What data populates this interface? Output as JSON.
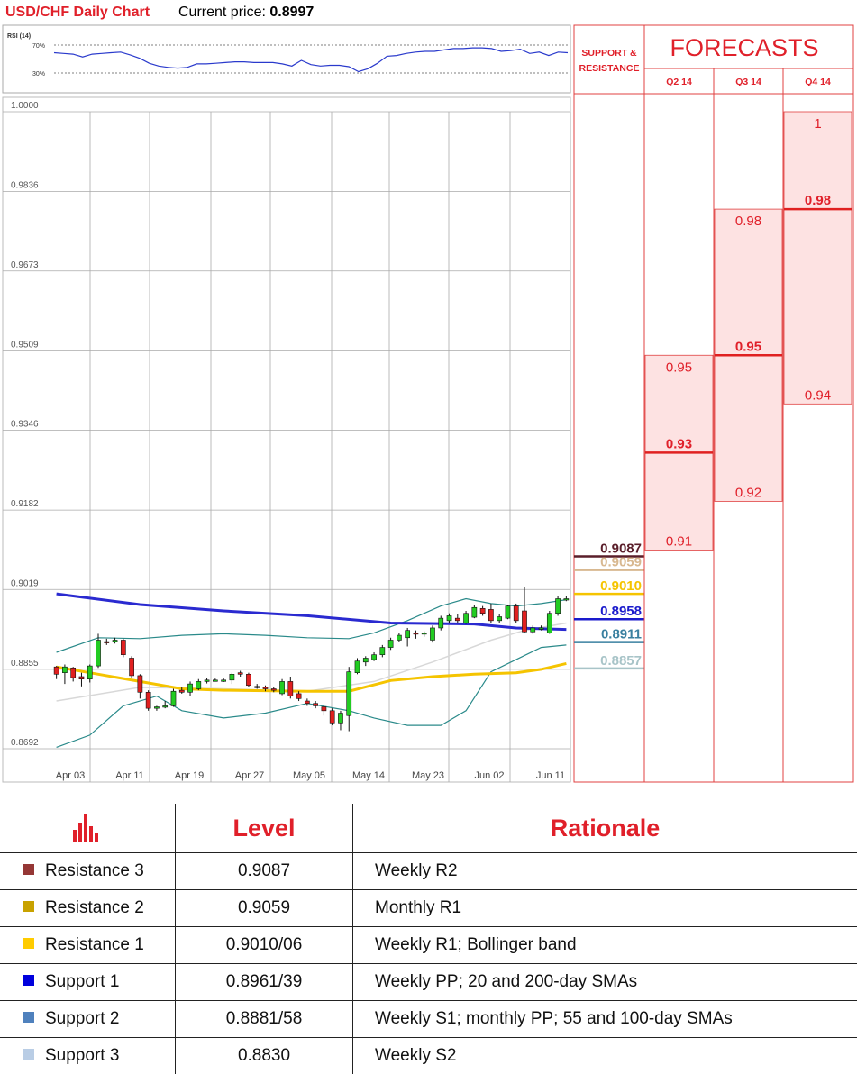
{
  "header": {
    "title": "USD/CHF Daily Chart",
    "price_label": "Current price:",
    "price_value": "0.8997"
  },
  "rsi": {
    "label": "RSI (14)",
    "ticks": [
      "70%",
      "30%"
    ],
    "values": [
      59,
      58,
      57,
      53,
      57,
      58,
      59,
      60,
      56,
      51,
      44,
      40,
      38,
      37,
      38,
      43,
      43,
      44,
      45,
      46,
      46,
      45,
      45,
      45,
      43,
      40,
      48,
      42,
      40,
      41,
      41,
      39,
      32,
      36,
      44,
      54,
      55,
      58,
      60,
      61,
      61,
      63,
      65,
      65,
      66,
      66,
      65,
      61,
      62,
      64,
      58,
      60,
      55,
      60,
      59
    ]
  },
  "chart_data": {
    "type": "candlestick",
    "title": "USD/CHF Daily Chart",
    "y_ticks": [
      "1.0000",
      "0.9836",
      "0.9673",
      "0.9509",
      "0.9346",
      "0.9182",
      "0.9019",
      "0.8855",
      "0.8692"
    ],
    "x_ticks": [
      "Apr 03",
      "Apr 11",
      "Apr 19",
      "Apr 27",
      "May 05",
      "May 14",
      "May 23",
      "Jun 02",
      "Jun 11"
    ],
    "ylim": [
      0.8692,
      1.0
    ],
    "candles": [
      {
        "o": 0.886,
        "h": 0.8862,
        "l": 0.8835,
        "c": 0.8845
      },
      {
        "o": 0.8848,
        "h": 0.8865,
        "l": 0.8825,
        "c": 0.886
      },
      {
        "o": 0.8858,
        "h": 0.886,
        "l": 0.883,
        "c": 0.8838
      },
      {
        "o": 0.884,
        "h": 0.8848,
        "l": 0.882,
        "c": 0.8835
      },
      {
        "o": 0.8835,
        "h": 0.8865,
        "l": 0.8828,
        "c": 0.8862
      },
      {
        "o": 0.8862,
        "h": 0.8928,
        "l": 0.8858,
        "c": 0.8915
      },
      {
        "o": 0.8912,
        "h": 0.8918,
        "l": 0.8905,
        "c": 0.891
      },
      {
        "o": 0.8912,
        "h": 0.892,
        "l": 0.8908,
        "c": 0.8915
      },
      {
        "o": 0.8915,
        "h": 0.8918,
        "l": 0.888,
        "c": 0.8885
      },
      {
        "o": 0.8878,
        "h": 0.8882,
        "l": 0.8838,
        "c": 0.8842
      },
      {
        "o": 0.8842,
        "h": 0.8845,
        "l": 0.8795,
        "c": 0.8808
      },
      {
        "o": 0.8808,
        "h": 0.8812,
        "l": 0.877,
        "c": 0.8775
      },
      {
        "o": 0.8775,
        "h": 0.878,
        "l": 0.877,
        "c": 0.8778
      },
      {
        "o": 0.8778,
        "h": 0.879,
        "l": 0.8775,
        "c": 0.878
      },
      {
        "o": 0.878,
        "h": 0.8815,
        "l": 0.8778,
        "c": 0.881
      },
      {
        "o": 0.8812,
        "h": 0.8818,
        "l": 0.8805,
        "c": 0.8808
      },
      {
        "o": 0.8808,
        "h": 0.883,
        "l": 0.88,
        "c": 0.8825
      },
      {
        "o": 0.8815,
        "h": 0.8835,
        "l": 0.8812,
        "c": 0.883
      },
      {
        "o": 0.883,
        "h": 0.8838,
        "l": 0.8826,
        "c": 0.8833
      },
      {
        "o": 0.8833,
        "h": 0.8836,
        "l": 0.883,
        "c": 0.8833
      },
      {
        "o": 0.8833,
        "h": 0.8837,
        "l": 0.8829,
        "c": 0.8833
      },
      {
        "o": 0.8833,
        "h": 0.8848,
        "l": 0.8825,
        "c": 0.8845
      },
      {
        "o": 0.8848,
        "h": 0.8852,
        "l": 0.884,
        "c": 0.8845
      },
      {
        "o": 0.8845,
        "h": 0.8848,
        "l": 0.8818,
        "c": 0.8822
      },
      {
        "o": 0.882,
        "h": 0.8825,
        "l": 0.8815,
        "c": 0.8818
      },
      {
        "o": 0.8818,
        "h": 0.8822,
        "l": 0.881,
        "c": 0.8815
      },
      {
        "o": 0.8815,
        "h": 0.8818,
        "l": 0.8808,
        "c": 0.8812
      },
      {
        "o": 0.8805,
        "h": 0.8835,
        "l": 0.8802,
        "c": 0.883
      },
      {
        "o": 0.883,
        "h": 0.884,
        "l": 0.8795,
        "c": 0.88
      },
      {
        "o": 0.8805,
        "h": 0.881,
        "l": 0.879,
        "c": 0.8795
      },
      {
        "o": 0.879,
        "h": 0.8795,
        "l": 0.878,
        "c": 0.8785
      },
      {
        "o": 0.8785,
        "h": 0.879,
        "l": 0.8775,
        "c": 0.878
      },
      {
        "o": 0.8778,
        "h": 0.8782,
        "l": 0.876,
        "c": 0.877
      },
      {
        "o": 0.877,
        "h": 0.8775,
        "l": 0.874,
        "c": 0.8745
      },
      {
        "o": 0.8745,
        "h": 0.877,
        "l": 0.873,
        "c": 0.8765
      },
      {
        "o": 0.876,
        "h": 0.886,
        "l": 0.8728,
        "c": 0.885
      },
      {
        "o": 0.8848,
        "h": 0.8878,
        "l": 0.8845,
        "c": 0.8872
      },
      {
        "o": 0.887,
        "h": 0.8882,
        "l": 0.8862,
        "c": 0.8878
      },
      {
        "o": 0.8875,
        "h": 0.889,
        "l": 0.8872,
        "c": 0.8885
      },
      {
        "o": 0.8885,
        "h": 0.8905,
        "l": 0.888,
        "c": 0.89
      },
      {
        "o": 0.89,
        "h": 0.892,
        "l": 0.8895,
        "c": 0.8915
      },
      {
        "o": 0.8915,
        "h": 0.893,
        "l": 0.8912,
        "c": 0.8925
      },
      {
        "o": 0.892,
        "h": 0.894,
        "l": 0.8902,
        "c": 0.8935
      },
      {
        "o": 0.893,
        "h": 0.8935,
        "l": 0.8918,
        "c": 0.8928
      },
      {
        "o": 0.8928,
        "h": 0.8933,
        "l": 0.8922,
        "c": 0.893
      },
      {
        "o": 0.8915,
        "h": 0.8945,
        "l": 0.891,
        "c": 0.894
      },
      {
        "o": 0.894,
        "h": 0.8965,
        "l": 0.8935,
        "c": 0.896
      },
      {
        "o": 0.8955,
        "h": 0.897,
        "l": 0.895,
        "c": 0.8965
      },
      {
        "o": 0.896,
        "h": 0.8968,
        "l": 0.895,
        "c": 0.8955
      },
      {
        "o": 0.895,
        "h": 0.8975,
        "l": 0.8948,
        "c": 0.897
      },
      {
        "o": 0.8962,
        "h": 0.8988,
        "l": 0.896,
        "c": 0.8982
      },
      {
        "o": 0.898,
        "h": 0.8985,
        "l": 0.8965,
        "c": 0.897
      },
      {
        "o": 0.8978,
        "h": 0.899,
        "l": 0.895,
        "c": 0.8955
      },
      {
        "o": 0.8955,
        "h": 0.8968,
        "l": 0.895,
        "c": 0.8963
      },
      {
        "o": 0.896,
        "h": 0.8988,
        "l": 0.8958,
        "c": 0.8985
      },
      {
        "o": 0.8985,
        "h": 0.899,
        "l": 0.895,
        "c": 0.8955
      },
      {
        "o": 0.8975,
        "h": 0.9025,
        "l": 0.893,
        "c": 0.8932
      },
      {
        "o": 0.8932,
        "h": 0.8945,
        "l": 0.8928,
        "c": 0.894
      },
      {
        "o": 0.8938,
        "h": 0.8945,
        "l": 0.8935,
        "c": 0.894
      },
      {
        "o": 0.893,
        "h": 0.8975,
        "l": 0.8928,
        "c": 0.897
      },
      {
        "o": 0.897,
        "h": 0.9005,
        "l": 0.8965,
        "c": 0.9
      },
      {
        "o": 0.9,
        "h": 0.9005,
        "l": 0.8995,
        "c": 0.9
      }
    ],
    "sma_200": [
      [
        0,
        0.901
      ],
      [
        10,
        0.8988
      ],
      [
        20,
        0.8975
      ],
      [
        30,
        0.8965
      ],
      [
        40,
        0.895
      ],
      [
        50,
        0.8948
      ],
      [
        55,
        0.894
      ],
      [
        61,
        0.8937
      ]
    ],
    "sma_yellow": [
      [
        0,
        0.886
      ],
      [
        5,
        0.8845
      ],
      [
        10,
        0.883
      ],
      [
        15,
        0.8815
      ],
      [
        20,
        0.8812
      ],
      [
        30,
        0.881
      ],
      [
        35,
        0.881
      ],
      [
        40,
        0.8832
      ],
      [
        45,
        0.884
      ],
      [
        50,
        0.8845
      ],
      [
        55,
        0.8848
      ],
      [
        58,
        0.8855
      ],
      [
        61,
        0.8867
      ]
    ],
    "sma_grey": [
      [
        0,
        0.879
      ],
      [
        10,
        0.8818
      ],
      [
        20,
        0.8815
      ],
      [
        30,
        0.881
      ],
      [
        38,
        0.883
      ],
      [
        45,
        0.887
      ],
      [
        52,
        0.8915
      ],
      [
        56,
        0.8935
      ],
      [
        61,
        0.895
      ]
    ],
    "boll_upper": [
      [
        0,
        0.889
      ],
      [
        5,
        0.892
      ],
      [
        10,
        0.8918
      ],
      [
        15,
        0.8925
      ],
      [
        20,
        0.8928
      ],
      [
        25,
        0.8925
      ],
      [
        30,
        0.892
      ],
      [
        35,
        0.8918
      ],
      [
        38,
        0.893
      ],
      [
        42,
        0.8955
      ],
      [
        46,
        0.8985
      ],
      [
        49,
        0.9
      ],
      [
        52,
        0.899
      ],
      [
        55,
        0.8985
      ],
      [
        58,
        0.899
      ],
      [
        61,
        0.8998
      ]
    ],
    "boll_lower": [
      [
        0,
        0.8695
      ],
      [
        4,
        0.872
      ],
      [
        8,
        0.878
      ],
      [
        12,
        0.88
      ],
      [
        15,
        0.877
      ],
      [
        20,
        0.8755
      ],
      [
        25,
        0.8765
      ],
      [
        30,
        0.8785
      ],
      [
        35,
        0.877
      ],
      [
        38,
        0.8755
      ],
      [
        42,
        0.874
      ],
      [
        46,
        0.874
      ],
      [
        49,
        0.877
      ],
      [
        52,
        0.885
      ],
      [
        55,
        0.8875
      ],
      [
        58,
        0.89
      ],
      [
        61,
        0.8905
      ]
    ]
  },
  "support_resistance": {
    "header": [
      "SUPPORT &",
      "RESISTANCE"
    ],
    "levels": [
      {
        "value": 0.9087,
        "label": "0.9087",
        "color": "#5a1e2a"
      },
      {
        "value": 0.9059,
        "label": "0.9059",
        "color": "#d8b890"
      },
      {
        "value": 0.901,
        "label": "0.9010",
        "color": "#f5c400"
      },
      {
        "value": 0.8958,
        "label": "0.8958",
        "color": "#1a1acc"
      },
      {
        "value": 0.8911,
        "label": "0.8911",
        "color": "#3a80a0"
      },
      {
        "value": 0.8857,
        "label": "0.8857",
        "color": "#a8c4c8"
      }
    ]
  },
  "forecasts": {
    "title": "FORECASTS",
    "columns": [
      {
        "name": "Q2 14",
        "high": 0.95,
        "mid": 0.93,
        "low": 0.91,
        "high_label": "0.95",
        "mid_label": "0.93",
        "low_label": "0.91"
      },
      {
        "name": "Q3 14",
        "high": 0.98,
        "mid": 0.95,
        "low": 0.92,
        "high_label": "0.98",
        "mid_label": "0.95",
        "low_label": "0.92"
      },
      {
        "name": "Q4 14",
        "high": 1.0,
        "mid": 0.98,
        "low": 0.94,
        "high_label": "1",
        "mid_label": "0.98",
        "low_label": "0.94"
      }
    ]
  },
  "table": {
    "headers": {
      "level": "Level",
      "rationale": "Rationale"
    },
    "rows": [
      {
        "name": "Resistance 3",
        "level": "0.9087",
        "rationale": "Weekly R2",
        "color": "#953735"
      },
      {
        "name": "Resistance 2",
        "level": "0.9059",
        "rationale": "Monthly R1",
        "color": "#c8a200"
      },
      {
        "name": "Resistance 1",
        "level": "0.9010/06",
        "rationale": "Weekly R1; Bollinger band",
        "color": "#ffcc00"
      },
      {
        "name": "Support 1",
        "level": "0.8961/39",
        "rationale": "Weekly PP; 20 and 200-day SMAs",
        "color": "#0000dd"
      },
      {
        "name": "Support 2",
        "level": "0.8881/58",
        "rationale": "Weekly S1; monthly PP; 55 and 100-day SMAs",
        "color": "#4f81bd"
      },
      {
        "name": "Support 3",
        "level": "0.8830",
        "rationale": "Weekly S2",
        "color": "#b9cde5"
      }
    ]
  }
}
